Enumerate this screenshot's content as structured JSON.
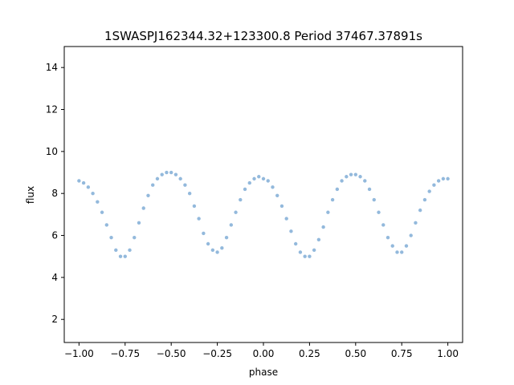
{
  "chart_data": {
    "type": "scatter",
    "title": "1SWASPJ162344.32+123300.8 Period 37467.37891s",
    "xlabel": "phase",
    "ylabel": "flux",
    "xlim": [
      -1.08,
      1.08
    ],
    "ylim": [
      0.9,
      15.0
    ],
    "xticks": [
      -1.0,
      -0.75,
      -0.5,
      -0.25,
      0.0,
      0.25,
      0.5,
      0.75,
      1.0
    ],
    "xtick_labels": [
      "−1.00",
      "−0.75",
      "−0.50",
      "−0.25",
      "0.00",
      "0.25",
      "0.50",
      "0.75",
      "1.00"
    ],
    "yticks": [
      2,
      4,
      6,
      8,
      10,
      12,
      14
    ],
    "ytick_labels": [
      "2",
      "4",
      "6",
      "8",
      "10",
      "12",
      "14"
    ],
    "grid": false,
    "marker_color": "#1f77b4",
    "series": [
      {
        "x": [
          -1.0,
          -0.975,
          -0.95,
          -0.925,
          -0.9,
          -0.875,
          -0.85,
          -0.825,
          -0.8,
          -0.775,
          -0.75,
          -0.725,
          -0.7,
          -0.675,
          -0.65,
          -0.625,
          -0.6,
          -0.575,
          -0.55,
          -0.525,
          -0.5,
          -0.475,
          -0.45,
          -0.425,
          -0.4,
          -0.375,
          -0.35,
          -0.325,
          -0.3,
          -0.275,
          -0.25,
          -0.225,
          -0.2,
          -0.175,
          -0.15,
          -0.125,
          -0.1,
          -0.075,
          -0.05,
          -0.025,
          0.0,
          0.025,
          0.05,
          0.075,
          0.1,
          0.125,
          0.15,
          0.175,
          0.2,
          0.225,
          0.25,
          0.275,
          0.3,
          0.325,
          0.35,
          0.375,
          0.4,
          0.425,
          0.45,
          0.475,
          0.5,
          0.525,
          0.55,
          0.575,
          0.6,
          0.625,
          0.65,
          0.675,
          0.7,
          0.725,
          0.75,
          0.775,
          0.8,
          0.825,
          0.85,
          0.875,
          0.9,
          0.925,
          0.95,
          0.975,
          1.0
        ],
        "y": [
          8.6,
          8.5,
          8.3,
          8.0,
          7.6,
          7.1,
          6.5,
          5.9,
          5.3,
          5.0,
          5.0,
          5.3,
          5.9,
          6.6,
          7.3,
          7.9,
          8.4,
          8.7,
          8.9,
          9.0,
          9.0,
          8.9,
          8.7,
          8.4,
          8.0,
          7.4,
          6.8,
          6.1,
          5.6,
          5.3,
          5.2,
          5.4,
          5.9,
          6.5,
          7.1,
          7.7,
          8.2,
          8.5,
          8.7,
          8.8,
          8.7,
          8.6,
          8.3,
          7.9,
          7.4,
          6.8,
          6.2,
          5.6,
          5.2,
          5.0,
          5.0,
          5.3,
          5.8,
          6.4,
          7.1,
          7.7,
          8.2,
          8.6,
          8.8,
          8.9,
          8.9,
          8.8,
          8.6,
          8.2,
          7.7,
          7.1,
          6.5,
          5.9,
          5.5,
          5.2,
          5.2,
          5.5,
          6.0,
          6.6,
          7.2,
          7.7,
          8.1,
          8.4,
          8.6,
          8.7,
          8.7
        ]
      }
    ]
  }
}
